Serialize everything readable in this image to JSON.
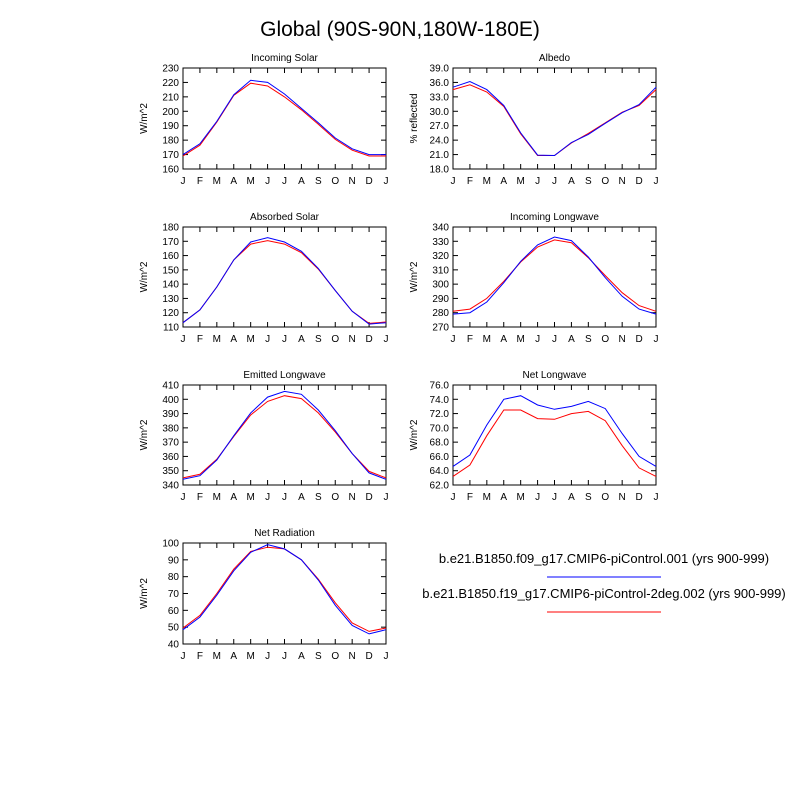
{
  "title": "Global (90S-90N,180W-180E)",
  "colors": {
    "series1": "#0000ff",
    "series2": "#ff0000"
  },
  "legend": [
    {
      "label": "b.e21.B1850.f09_g17.CMIP6-piControl.001 (yrs 900-999)",
      "color": "#0000ff"
    },
    {
      "label": "b.e21.B1850.f19_g17.CMIP6-piControl-2deg.002 (yrs 900-999)",
      "color": "#ff0000"
    }
  ],
  "chart_data": [
    {
      "type": "line",
      "title": "Incoming Solar",
      "ylabel": "W/m^2",
      "ylim": [
        160,
        230
      ],
      "yticks": [
        "160",
        "170",
        "180",
        "190",
        "200",
        "210",
        "220",
        "230"
      ],
      "categories": [
        "J",
        "F",
        "M",
        "A",
        "M",
        "J",
        "J",
        "A",
        "S",
        "O",
        "N",
        "D",
        "J"
      ],
      "series": [
        {
          "values": [
            170,
            177.5,
            193,
            211.5,
            221.5,
            220,
            212,
            202,
            192,
            181.5,
            174,
            170,
            170
          ]
        },
        {
          "values": [
            169,
            176.5,
            192.5,
            211,
            219.5,
            217.5,
            210,
            201,
            191,
            180.5,
            173,
            169,
            169
          ]
        }
      ]
    },
    {
      "type": "line",
      "title": "Albedo",
      "ylabel": "% reflected",
      "ylim": [
        18,
        39
      ],
      "yticks": [
        "18.0",
        "21.0",
        "24.0",
        "27.0",
        "30.0",
        "33.0",
        "36.0",
        "39.0"
      ],
      "categories": [
        "J",
        "F",
        "M",
        "A",
        "M",
        "J",
        "J",
        "A",
        "S",
        "O",
        "N",
        "D",
        "J"
      ],
      "series": [
        {
          "values": [
            35.0,
            36.2,
            34.5,
            31.2,
            25.5,
            20.9,
            20.8,
            23.5,
            25.2,
            27.5,
            29.7,
            31.4,
            35.0
          ]
        },
        {
          "values": [
            34.5,
            35.5,
            34.0,
            31.0,
            25.3,
            20.8,
            20.8,
            23.4,
            25.4,
            27.6,
            29.8,
            31.2,
            34.5
          ]
        }
      ]
    },
    {
      "type": "line",
      "title": "Absorbed Solar",
      "ylabel": "W/m^2",
      "ylim": [
        110,
        180
      ],
      "yticks": [
        "110",
        "120",
        "130",
        "140",
        "150",
        "160",
        "170",
        "180"
      ],
      "categories": [
        "J",
        "F",
        "M",
        "A",
        "M",
        "J",
        "J",
        "A",
        "S",
        "O",
        "N",
        "D",
        "J"
      ],
      "series": [
        {
          "values": [
            113,
            122,
            138,
            157,
            169.5,
            172.5,
            169.5,
            163,
            151,
            135.5,
            121,
            112,
            113
          ]
        },
        {
          "values": [
            113,
            122,
            138,
            157,
            168,
            170.5,
            168,
            162,
            150.5,
            135.5,
            121,
            112.5,
            113.5
          ]
        }
      ]
    },
    {
      "type": "line",
      "title": "Incoming Longwave",
      "ylabel": "W/m^2",
      "ylim": [
        270,
        340
      ],
      "yticks": [
        "270",
        "280",
        "290",
        "300",
        "310",
        "320",
        "330",
        "340"
      ],
      "categories": [
        "J",
        "F",
        "M",
        "A",
        "M",
        "J",
        "J",
        "A",
        "S",
        "O",
        "N",
        "D",
        "J"
      ],
      "series": [
        {
          "values": [
            279,
            280,
            287.5,
            301,
            316,
            327.5,
            333,
            330.5,
            319,
            304.5,
            291.5,
            282.5,
            279
          ]
        },
        {
          "values": [
            281,
            282.5,
            290,
            302,
            315.5,
            326,
            331,
            329,
            318.5,
            306,
            294,
            285,
            281
          ]
        }
      ]
    },
    {
      "type": "line",
      "title": "Emitted Longwave",
      "ylabel": "W/m^2",
      "ylim": [
        340,
        410
      ],
      "yticks": [
        "340",
        "350",
        "360",
        "370",
        "380",
        "390",
        "400",
        "410"
      ],
      "categories": [
        "J",
        "F",
        "M",
        "A",
        "M",
        "J",
        "J",
        "A",
        "S",
        "O",
        "N",
        "D",
        "J"
      ],
      "series": [
        {
          "values": [
            344,
            346.5,
            357.5,
            374.5,
            390.5,
            401.5,
            405.5,
            403.5,
            392.5,
            378,
            362,
            348.5,
            344
          ]
        },
        {
          "values": [
            345,
            347.5,
            358,
            374,
            389,
            398.5,
            402.5,
            400.5,
            390.5,
            377,
            362,
            349.5,
            345
          ]
        }
      ]
    },
    {
      "type": "line",
      "title": "Net Longwave",
      "ylabel": "W/m^2",
      "ylim": [
        62,
        76
      ],
      "yticks": [
        "62.0",
        "64.0",
        "66.0",
        "68.0",
        "70.0",
        "72.0",
        "74.0",
        "76.0"
      ],
      "categories": [
        "J",
        "F",
        "M",
        "A",
        "M",
        "J",
        "J",
        "A",
        "S",
        "O",
        "N",
        "D",
        "J"
      ],
      "series": [
        {
          "values": [
            64.6,
            66.2,
            70.4,
            74.0,
            74.5,
            73.2,
            72.6,
            73.0,
            73.7,
            72.7,
            69.2,
            66.0,
            64.6
          ]
        },
        {
          "values": [
            63.2,
            64.8,
            68.9,
            72.5,
            72.5,
            71.3,
            71.2,
            72.0,
            72.3,
            71.0,
            67.5,
            64.4,
            63.2
          ]
        }
      ]
    },
    {
      "type": "line",
      "title": "Net Radiation",
      "ylabel": "W/m^2",
      "ylim": [
        40,
        100
      ],
      "yticks": [
        "40",
        "50",
        "60",
        "70",
        "80",
        "90",
        "100"
      ],
      "categories": [
        "J",
        "F",
        "M",
        "A",
        "M",
        "J",
        "J",
        "A",
        "S",
        "O",
        "N",
        "D",
        "J"
      ],
      "series": [
        {
          "values": [
            48.5,
            56,
            69,
            83.5,
            94.5,
            99,
            96.5,
            90,
            78,
            63,
            51,
            46,
            48.5
          ]
        },
        {
          "values": [
            49.5,
            57,
            70,
            84.5,
            95,
            97.5,
            96.5,
            90,
            78.5,
            64.5,
            52.5,
            47.5,
            49.5
          ]
        }
      ]
    }
  ]
}
